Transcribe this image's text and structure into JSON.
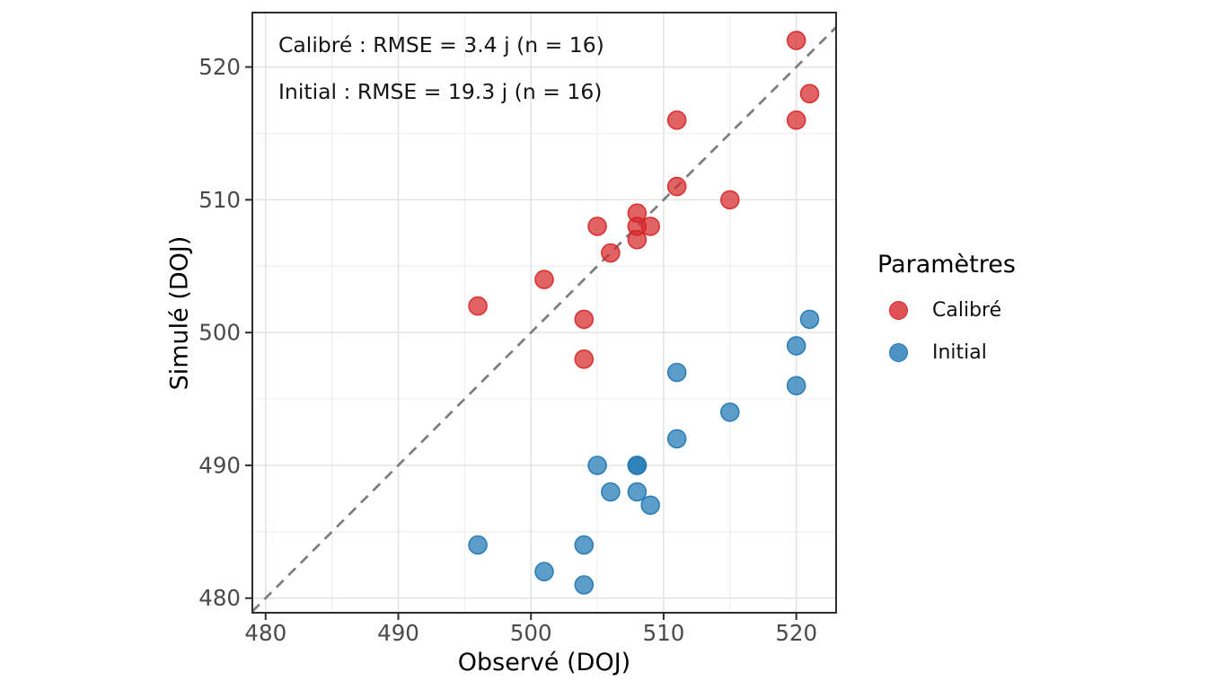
{
  "chart_data": {
    "type": "scatter",
    "title": "",
    "xlabel": "Observé (DOJ)",
    "ylabel": "Simulé (DOJ)",
    "xlim": [
      479,
      523
    ],
    "ylim": [
      478.9,
      524.1
    ],
    "xticks": [
      480,
      490,
      500,
      510,
      520
    ],
    "yticks": [
      480,
      490,
      500,
      510,
      520
    ],
    "xticks_minor": [
      485,
      495,
      505,
      515
    ],
    "yticks_minor": [
      485,
      495,
      505,
      515
    ],
    "grid": true,
    "annotations": [
      "Calibré : RMSE = 3.4 j (n = 16)",
      "Initial : RMSE = 19.3 j (n = 16)"
    ],
    "legend_title": "Paramètres",
    "legend_position": "right",
    "identity_line": {
      "style": "dashed",
      "color": "#7d7d7d",
      "from": 479,
      "to": 523
    },
    "series": [
      {
        "name": "Calibré",
        "color": "#d62728",
        "fill_alpha": 0.72,
        "rmse": 3.4,
        "n": 16,
        "points": [
          [
            496,
            502
          ],
          [
            501,
            504
          ],
          [
            504,
            501
          ],
          [
            504,
            498
          ],
          [
            505,
            508
          ],
          [
            506,
            506
          ],
          [
            508,
            509
          ],
          [
            508,
            508
          ],
          [
            508,
            507
          ],
          [
            509,
            508
          ],
          [
            511,
            511
          ],
          [
            511,
            516
          ],
          [
            515,
            510
          ],
          [
            520,
            522
          ],
          [
            520,
            516
          ],
          [
            521,
            518
          ]
        ]
      },
      {
        "name": "Initial",
        "color": "#1f77b4",
        "fill_alpha": 0.72,
        "rmse": 19.3,
        "n": 16,
        "points": [
          [
            496,
            484
          ],
          [
            501,
            482
          ],
          [
            504,
            484
          ],
          [
            504,
            481
          ],
          [
            505,
            490
          ],
          [
            506,
            488
          ],
          [
            508,
            490
          ],
          [
            508,
            490
          ],
          [
            508,
            488
          ],
          [
            509,
            487
          ],
          [
            511,
            497
          ],
          [
            511,
            492
          ],
          [
            515,
            494
          ],
          [
            520,
            499
          ],
          [
            520,
            496
          ],
          [
            521,
            501
          ]
        ]
      }
    ],
    "colors": {
      "grid_major": "#e3e3e3",
      "grid_minor": "#efefef",
      "panel_border": "#2d2d2d",
      "tick_label": "#4a4a4a",
      "background": "#ffffff"
    }
  }
}
